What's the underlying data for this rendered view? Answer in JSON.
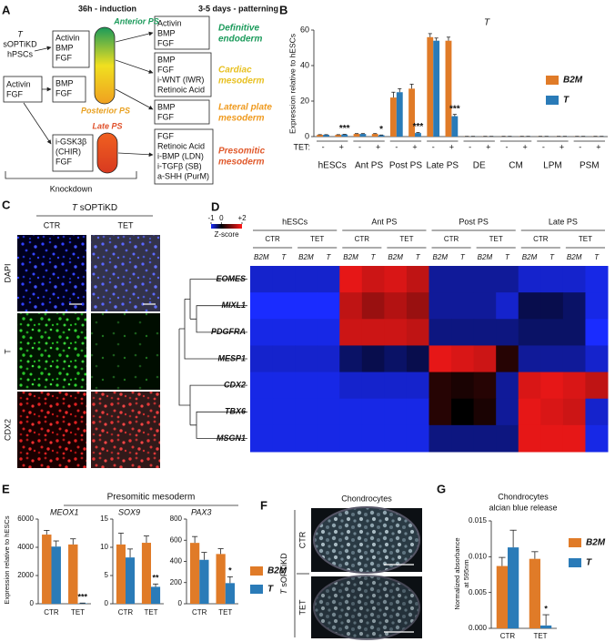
{
  "panel_a": {
    "letter": "A",
    "header_induction": "36h - induction",
    "header_patterning": "3-5 days - patterning",
    "source": [
      "T",
      "sOPTiKD",
      "hPSCs"
    ],
    "seed_box": [
      "Activin",
      "FGF"
    ],
    "induction_boxes": [
      [
        "Activin",
        "BMP",
        "FGF"
      ],
      [
        "BMP",
        "FGF"
      ],
      [
        "i-GSK3β",
        "(CHIR)",
        "FGF"
      ]
    ],
    "ps_labels": [
      "Anterior PS",
      "Posterior PS",
      "Late PS"
    ],
    "ps_colors": [
      "#1a9a5a",
      "#e8a020",
      "#e0502a"
    ],
    "patterning_boxes": [
      [
        "Activin",
        "BMP",
        "FGF"
      ],
      [
        "BMP",
        "FGF",
        "i-WNT (IWR)",
        "Retinoic Acid"
      ],
      [
        "BMP",
        "FGF"
      ],
      [
        "FGF",
        "Retinoic Acid",
        "i-BMP (LDN)",
        "i-TGFβ (SB)",
        "a-SHH (PurM)"
      ]
    ],
    "fates": [
      [
        "Definitive",
        "endoderm"
      ],
      [
        "Cardiac",
        "mesoderm"
      ],
      [
        "Lateral plate",
        "mesoderm"
      ],
      [
        "Presomitic",
        "mesoderm"
      ]
    ],
    "fate_colors": [
      "#1a9a5a",
      "#e8c020",
      "#ef9a1e",
      "#e0582a"
    ],
    "knockdown": "Knockdown"
  },
  "panel_c": {
    "letter": "C",
    "title_gene": "T",
    "title_rest": "sOPTiKD",
    "columns": [
      "CTR",
      "TET"
    ],
    "rows": [
      "DAPI",
      "T",
      "CDX2"
    ]
  },
  "panel_d": {
    "letter": "D",
    "stages": [
      "hESCs",
      "Ant PS",
      "Post PS",
      "Late PS"
    ],
    "conditions": [
      "CTR",
      "TET"
    ],
    "genes_knocked": [
      "B2M",
      "T"
    ],
    "rows": [
      "EOMES",
      "MIXL1",
      "PDGFRA",
      "MESP1",
      "CDX2",
      "TBX6",
      "MSGN1"
    ],
    "values": [
      [
        -0.8,
        -0.8,
        -0.8,
        -0.8,
        1.8,
        1.6,
        1.7,
        1.5,
        -0.6,
        -0.6,
        -0.6,
        -0.6,
        -0.8,
        -0.8,
        -0.8,
        -0.9
      ],
      [
        -1,
        -1,
        -1,
        -1,
        1.5,
        1.2,
        1.4,
        1.2,
        -0.6,
        -0.6,
        -0.6,
        -0.8,
        -0.3,
        -0.3,
        -0.4,
        -0.9
      ],
      [
        -0.9,
        -0.9,
        -0.9,
        -0.9,
        1.6,
        1.6,
        1.6,
        1.5,
        -0.5,
        -0.5,
        -0.5,
        -0.5,
        -0.4,
        -0.4,
        -0.4,
        -1
      ],
      [
        -0.8,
        -0.8,
        -0.8,
        -0.8,
        -0.4,
        -0.3,
        -0.4,
        -0.3,
        1.8,
        1.7,
        1.6,
        0.3,
        -0.6,
        -0.6,
        -0.6,
        -0.8
      ],
      [
        -0.9,
        -0.9,
        -0.9,
        -0.9,
        -0.8,
        -0.8,
        -0.8,
        -0.8,
        0.3,
        0.2,
        0.3,
        -0.6,
        1.7,
        1.8,
        1.7,
        1.5
      ],
      [
        -0.9,
        -0.9,
        -0.9,
        -0.9,
        -0.9,
        -0.9,
        -0.9,
        -0.9,
        0.3,
        0,
        0.2,
        -0.6,
        1.8,
        1.7,
        1.6,
        -0.8
      ],
      [
        -0.9,
        -0.9,
        -0.9,
        -0.9,
        -0.9,
        -0.9,
        -0.9,
        -0.9,
        -0.5,
        -0.5,
        -0.5,
        -0.5,
        1.8,
        1.8,
        1.8,
        -0.9
      ]
    ],
    "colorbar_lim": [
      -1,
      2
    ],
    "colorbar_ticks": [
      -1,
      0,
      {
        "value": 2,
        "label": "+2"
      }
    ],
    "colormap": [
      "#1a2cff",
      "#000000",
      "#ff1a1a"
    ],
    "colorbar_label": "Z-score"
  },
  "panel_e": {
    "letter": "E",
    "header": "Presomitic mesoderm"
  },
  "panel_f": {
    "letter": "F",
    "title": "Chondrocytes",
    "label_gene": "T",
    "label_rest": "sOPTiKD",
    "rows": [
      "CTR",
      "TET"
    ]
  },
  "chart_data": [
    {
      "type": "bar",
      "letter": "B",
      "title": "T",
      "ylabel": "Expression relative to hESCs",
      "condition_label": "TET:",
      "groups": [
        "hESCs",
        "Ant PS",
        "Post PS",
        "Late PS",
        "DE",
        "CM",
        "LPM",
        "PSM"
      ],
      "categories": [
        "-",
        "+",
        "-",
        "+",
        "-",
        "+",
        "-",
        "+",
        "-",
        "+",
        "-",
        "+",
        "-",
        "+",
        "-",
        "+"
      ],
      "series": [
        {
          "name": "B2M",
          "color": "#e07b28",
          "values": [
            1,
            1,
            1.5,
            1.5,
            22,
            27,
            56,
            54,
            0.1,
            0.1,
            0.1,
            0.1,
            0.1,
            0.1,
            0.1,
            0.1
          ],
          "errors": [
            0.1,
            0.1,
            0.2,
            0.2,
            3,
            2.5,
            2,
            2,
            0.05,
            0.05,
            0.05,
            0.05,
            0.05,
            0.05,
            0.05,
            0.05
          ]
        },
        {
          "name": "T",
          "color": "#2a7bb8",
          "values": [
            1,
            1.2,
            1.5,
            0.8,
            25,
            2,
            54,
            11.5,
            0.1,
            0.1,
            0.1,
            0.1,
            0.1,
            0.1,
            0.1,
            0.1
          ],
          "errors": [
            0.1,
            0.1,
            0.2,
            0.1,
            2,
            0.3,
            1.5,
            1,
            0.05,
            0.05,
            0.05,
            0.05,
            0.05,
            0.05,
            0.05,
            0.05
          ],
          "significance": [
            null,
            "***",
            null,
            "*",
            null,
            "***",
            null,
            "***",
            null,
            null,
            null,
            null,
            null,
            null,
            null,
            null
          ]
        }
      ],
      "ylim": [
        0,
        60
      ],
      "yticks": [
        0,
        20,
        40,
        60
      ]
    },
    {
      "type": "bar",
      "title": "MEOX1",
      "ylabel": "Expression relative to hESCs",
      "categories": [
        "CTR",
        "TET"
      ],
      "series": [
        {
          "name": "B2M",
          "color": "#e07b28",
          "values": [
            4900,
            4200
          ],
          "errors": [
            300,
            400
          ]
        },
        {
          "name": "T",
          "color": "#2a7bb8",
          "values": [
            4050,
            30
          ],
          "errors": [
            400,
            20
          ],
          "significance": [
            null,
            "***"
          ]
        }
      ],
      "ylim": [
        0,
        6000
      ],
      "yticks": [
        0,
        2000,
        4000,
        6000
      ]
    },
    {
      "type": "bar",
      "title": "SOX9",
      "categories": [
        "CTR",
        "TET"
      ],
      "series": [
        {
          "name": "B2M",
          "color": "#e07b28",
          "values": [
            10.5,
            10.8
          ],
          "errors": [
            2,
            1.2
          ]
        },
        {
          "name": "T",
          "color": "#2a7bb8",
          "values": [
            8.2,
            3
          ],
          "errors": [
            1.5,
            0.5
          ],
          "significance": [
            null,
            "**"
          ]
        }
      ],
      "ylim": [
        0,
        15
      ],
      "yticks": [
        0,
        5,
        10,
        15
      ]
    },
    {
      "type": "bar",
      "title": "PAX3",
      "categories": [
        "CTR",
        "TET"
      ],
      "series": [
        {
          "name": "B2M",
          "color": "#e07b28",
          "values": [
            575,
            470
          ],
          "errors": [
            60,
            50
          ]
        },
        {
          "name": "T",
          "color": "#2a7bb8",
          "values": [
            415,
            195
          ],
          "errors": [
            70,
            60
          ],
          "significance": [
            null,
            "*"
          ]
        }
      ],
      "ylim": [
        0,
        800
      ],
      "yticks": [
        0,
        200,
        400,
        600,
        800
      ]
    },
    {
      "type": "bar",
      "letter": "G",
      "title": [
        "Chondrocytes",
        "alcian blue release"
      ],
      "ylabel": [
        "Normalized absorbance",
        "at 595nm"
      ],
      "categories": [
        "CTR",
        "TET"
      ],
      "series": [
        {
          "name": "B2M",
          "color": "#e07b28",
          "values": [
            0.0087,
            0.0097
          ],
          "errors": [
            0.0012,
            0.001
          ]
        },
        {
          "name": "T",
          "color": "#2a7bb8",
          "values": [
            0.0113,
            0.0004
          ],
          "errors": [
            0.0024,
            0.0015
          ],
          "significance": [
            null,
            "*"
          ]
        }
      ],
      "ylim": [
        0,
        0.015
      ],
      "yticks": [
        {
          "value": 0,
          "label": "0.000"
        },
        {
          "value": 0.005,
          "label": "0.005"
        },
        {
          "value": 0.01,
          "label": "0.010"
        },
        {
          "value": 0.015,
          "label": "0.015"
        }
      ]
    }
  ]
}
